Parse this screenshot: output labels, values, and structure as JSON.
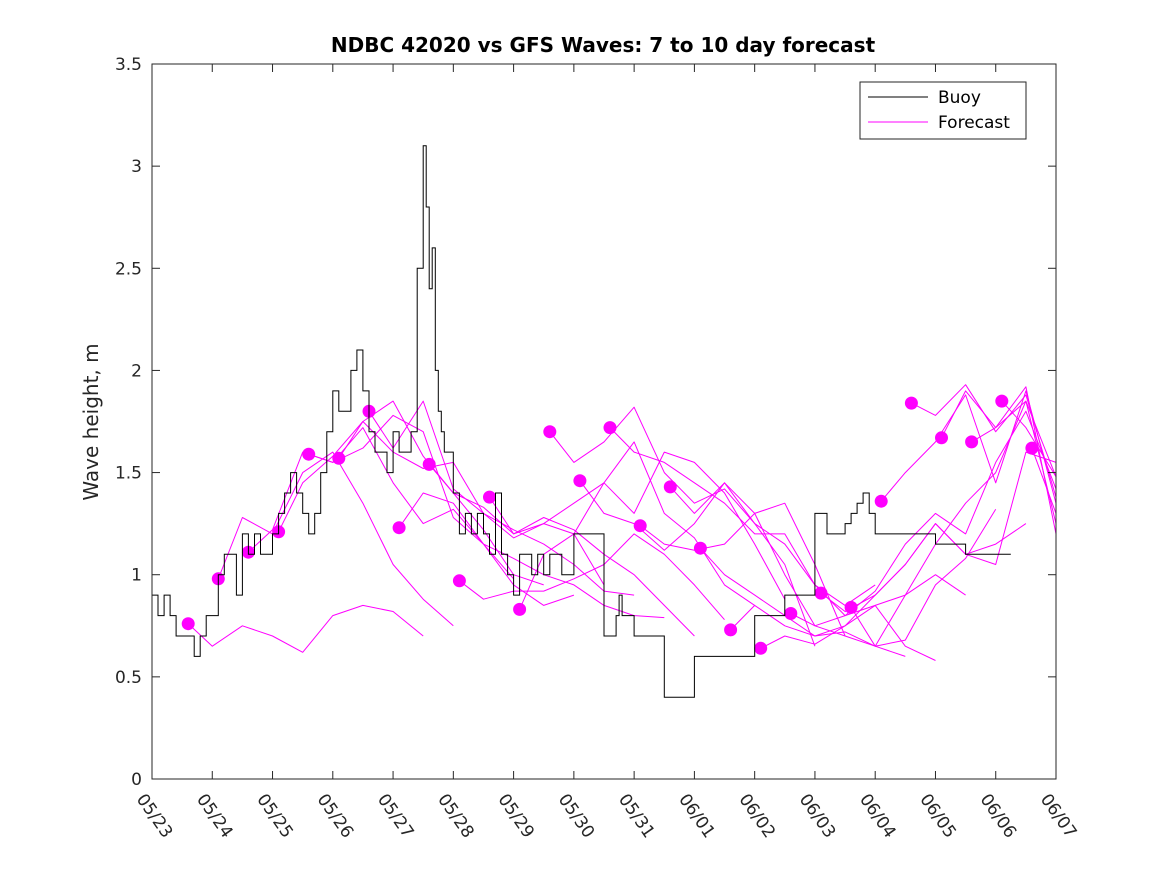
{
  "chart_data": {
    "type": "line",
    "title": "NDBC 42020 vs GFS Waves: 7 to 10 day forecast",
    "xlabel": "",
    "ylabel": "Wave height, m",
    "xlim": [
      "05/23",
      "06/07"
    ],
    "ylim": [
      0,
      3.5
    ],
    "x_ticks": [
      "05/23",
      "05/24",
      "05/25",
      "05/26",
      "05/27",
      "05/28",
      "05/29",
      "05/30",
      "05/31",
      "06/01",
      "06/02",
      "06/03",
      "06/04",
      "06/05",
      "06/06",
      "06/07"
    ],
    "y_ticks": [
      "0",
      "0.5",
      "1",
      "1.5",
      "2",
      "2.5",
      "3",
      "3.5"
    ],
    "grid": false,
    "legend_position": "top-right",
    "colors": {
      "buoy": "#000000",
      "forecast": "#ff00ff"
    },
    "legend": [
      {
        "label": "Buoy",
        "color": "#000000"
      },
      {
        "label": "Forecast",
        "color": "#ff00ff"
      }
    ],
    "series": [
      {
        "name": "Buoy",
        "color": "#000000",
        "x_days": [
          0,
          0.1,
          0.2,
          0.3,
          0.4,
          0.5,
          0.6,
          0.7,
          0.8,
          0.9,
          1.0,
          1.1,
          1.2,
          1.3,
          1.4,
          1.5,
          1.6,
          1.7,
          1.8,
          1.9,
          2.0,
          2.1,
          2.2,
          2.3,
          2.4,
          2.5,
          2.6,
          2.7,
          2.8,
          2.9,
          3.0,
          3.1,
          3.2,
          3.3,
          3.4,
          3.5,
          3.6,
          3.7,
          3.8,
          3.9,
          4.0,
          4.1,
          4.2,
          4.3,
          4.4,
          4.5,
          4.55,
          4.6,
          4.65,
          4.7,
          4.75,
          4.8,
          4.85,
          4.9,
          5.0,
          5.1,
          5.2,
          5.3,
          5.4,
          5.5,
          5.6,
          5.7,
          5.8,
          5.9,
          6.0,
          6.1,
          6.2,
          6.3,
          6.4,
          6.5,
          6.6,
          6.7,
          6.8,
          6.9,
          7.0,
          7.5,
          7.7,
          7.75,
          7.8,
          8.0,
          8.5,
          8.7,
          9.0,
          10.0,
          10.5,
          11.0,
          11.2,
          11.4,
          11.5,
          11.6,
          11.7,
          11.8,
          11.9,
          12.0,
          12.3,
          12.6,
          12.7,
          12.8,
          13.0,
          13.5,
          14.0,
          14.25
        ],
        "y": [
          0.9,
          0.8,
          0.9,
          0.8,
          0.7,
          0.7,
          0.7,
          0.6,
          0.7,
          0.8,
          0.8,
          1.0,
          1.1,
          1.1,
          0.9,
          1.2,
          1.1,
          1.2,
          1.1,
          1.1,
          1.2,
          1.3,
          1.4,
          1.5,
          1.4,
          1.3,
          1.2,
          1.3,
          1.5,
          1.7,
          1.9,
          1.8,
          1.8,
          2.0,
          2.1,
          1.9,
          1.7,
          1.6,
          1.6,
          1.5,
          1.7,
          1.6,
          1.6,
          1.7,
          2.5,
          3.1,
          2.8,
          2.4,
          2.6,
          2.0,
          1.8,
          1.7,
          1.6,
          1.6,
          1.4,
          1.2,
          1.3,
          1.2,
          1.3,
          1.2,
          1.1,
          1.4,
          1.1,
          1.0,
          0.9,
          1.1,
          1.1,
          1.0,
          1.1,
          1.0,
          1.1,
          1.1,
          1.0,
          1.0,
          1.2,
          0.7,
          0.8,
          0.9,
          0.8,
          0.7,
          0.4,
          0.4,
          0.6,
          0.8,
          0.9,
          1.3,
          1.2,
          1.2,
          1.25,
          1.3,
          1.35,
          1.4,
          1.3,
          1.2,
          1.2,
          1.2,
          1.2,
          1.2,
          1.15,
          1.1,
          1.1,
          1.1
        ]
      },
      {
        "name": "Forecast",
        "color": "#ff00ff",
        "runs": [
          {
            "x_days": [
              0.6,
              1.0,
              1.5,
              2.0,
              2.5,
              3.0,
              3.5,
              4.0,
              4.5
            ],
            "y": [
              0.76,
              0.65,
              0.75,
              0.7,
              0.62,
              0.8,
              0.85,
              0.82,
              0.7
            ]
          },
          {
            "x_days": [
              1.1,
              1.5,
              2.0,
              2.5,
              3.0,
              3.5,
              4.0,
              4.5,
              5.0
            ],
            "y": [
              0.98,
              1.28,
              1.2,
              1.5,
              1.6,
              1.35,
              1.05,
              0.88,
              0.75
            ]
          },
          {
            "x_days": [
              1.6,
              2.0,
              2.5,
              3.0,
              3.5,
              4.0,
              4.5,
              5.0,
              5.5,
              6.0
            ],
            "y": [
              1.11,
              1.22,
              1.6,
              1.55,
              1.72,
              1.45,
              1.25,
              1.32,
              1.15,
              0.98
            ]
          },
          {
            "x_days": [
              2.1,
              2.5,
              3.0,
              3.5,
              4.0,
              4.5,
              5.0,
              5.5,
              6.0,
              6.5
            ],
            "y": [
              1.21,
              1.45,
              1.58,
              1.75,
              1.85,
              1.58,
              1.4,
              1.22,
              1.0,
              0.95
            ]
          },
          {
            "x_days": [
              2.6,
              3.0,
              3.5,
              4.0,
              4.5,
              5.0,
              5.5,
              6.0,
              6.5,
              7.0
            ],
            "y": [
              1.59,
              1.55,
              1.62,
              1.78,
              1.7,
              1.28,
              1.15,
              0.95,
              0.85,
              0.9
            ]
          },
          {
            "x_days": [
              3.1,
              3.5,
              4.0,
              4.5,
              5.0,
              5.5,
              6.0,
              6.5,
              7.0,
              7.5
            ],
            "y": [
              1.57,
              1.75,
              1.6,
              1.52,
              1.55,
              1.3,
              1.18,
              1.25,
              1.2,
              0.95
            ]
          },
          {
            "x_days": [
              3.6,
              4.0,
              4.5,
              5.0,
              5.5,
              6.0,
              6.5,
              7.0,
              7.5,
              8.0
            ],
            "y": [
              1.8,
              1.62,
              1.85,
              1.42,
              1.3,
              1.22,
              1.15,
              1.05,
              0.92,
              0.9
            ]
          },
          {
            "x_days": [
              4.1,
              4.5,
              5.0,
              5.5,
              6.0,
              6.5,
              7.0,
              7.5,
              8.0,
              8.5
            ],
            "y": [
              1.23,
              1.4,
              1.35,
              1.15,
              1.08,
              1.0,
              0.95,
              0.85,
              0.8,
              0.79
            ]
          },
          {
            "x_days": [
              4.6,
              5.0,
              5.5,
              6.0,
              6.5,
              7.0,
              7.5,
              8.0,
              8.5,
              9.0
            ],
            "y": [
              1.54,
              1.4,
              1.33,
              1.2,
              1.28,
              1.22,
              1.1,
              1.0,
              0.85,
              0.7
            ]
          },
          {
            "x_days": [
              5.1,
              5.5,
              6.0,
              6.5,
              7.0,
              7.5,
              8.0,
              8.5,
              9.0,
              9.5
            ],
            "y": [
              0.97,
              0.88,
              0.92,
              0.92,
              0.98,
              1.05,
              1.2,
              1.1,
              0.95,
              0.78
            ]
          },
          {
            "x_days": [
              5.6,
              6.0,
              6.5,
              7.0,
              7.5,
              8.0,
              8.5,
              9.0,
              9.5,
              10.0
            ],
            "y": [
              1.38,
              1.2,
              1.25,
              1.35,
              1.45,
              1.65,
              1.3,
              1.18,
              0.95,
              0.85
            ]
          },
          {
            "x_days": [
              6.1,
              6.5,
              7.0,
              7.5,
              8.0,
              8.5,
              9.0,
              9.5,
              10.0,
              10.5
            ],
            "y": [
              0.83,
              1.1,
              1.2,
              1.45,
              1.3,
              1.6,
              1.55,
              1.4,
              1.15,
              0.88
            ]
          },
          {
            "x_days": [
              6.6,
              7.0,
              7.5,
              8.0,
              8.5,
              9.0,
              9.5,
              10.0,
              10.5,
              11.0
            ],
            "y": [
              1.7,
              1.55,
              1.65,
              1.82,
              1.5,
              1.35,
              1.42,
              1.25,
              1.05,
              0.65
            ]
          },
          {
            "x_days": [
              7.1,
              7.5,
              8.0,
              8.5,
              9.0,
              9.5,
              10.0,
              10.5,
              11.0,
              11.5
            ],
            "y": [
              1.46,
              1.3,
              1.25,
              1.12,
              1.25,
              1.45,
              1.3,
              1.35,
              1.05,
              0.7
            ]
          },
          {
            "x_days": [
              7.6,
              8.0,
              8.5,
              9.0,
              9.5,
              10.0,
              10.5,
              11.0,
              11.5,
              12.0
            ],
            "y": [
              1.72,
              1.6,
              1.55,
              1.45,
              1.35,
              1.2,
              1.2,
              0.95,
              0.85,
              0.95
            ]
          },
          {
            "x_days": [
              8.1,
              8.5,
              9.0,
              9.5,
              10.0,
              10.5,
              11.0,
              11.5,
              12.0,
              12.5
            ],
            "y": [
              1.24,
              1.15,
              1.12,
              1.15,
              1.3,
              1.0,
              0.75,
              0.7,
              0.65,
              0.6
            ]
          },
          {
            "x_days": [
              8.6,
              9.0,
              9.5,
              10.0,
              10.5,
              11.0,
              11.5,
              12.0,
              12.5,
              13.0
            ],
            "y": [
              1.43,
              1.3,
              1.45,
              1.25,
              1.15,
              0.95,
              0.8,
              0.85,
              0.65,
              0.58
            ]
          },
          {
            "x_days": [
              9.1,
              9.5,
              10.0,
              10.5,
              11.0,
              11.5,
              12.0,
              12.5,
              13.0,
              13.5
            ],
            "y": [
              1.13,
              1.0,
              0.9,
              0.8,
              0.7,
              0.75,
              0.85,
              0.9,
              1.0,
              0.9
            ]
          },
          {
            "x_days": [
              9.6,
              10.0,
              10.5,
              11.0,
              11.5,
              12.0,
              12.5,
              13.0,
              13.5,
              14.0
            ],
            "y": [
              0.73,
              0.85,
              0.75,
              0.7,
              0.72,
              0.65,
              0.68,
              0.95,
              1.08,
              1.32
            ]
          },
          {
            "x_days": [
              10.1,
              10.5,
              11.0,
              11.5,
              12.0,
              12.5,
              13.0,
              13.5,
              14.0,
              14.5
            ],
            "y": [
              0.64,
              0.7,
              0.66,
              0.75,
              0.9,
              1.05,
              1.25,
              1.1,
              1.15,
              1.25
            ]
          },
          {
            "x_days": [
              10.6,
              11.0,
              11.5,
              12.0,
              12.5,
              13.0,
              13.5,
              14.0,
              14.5,
              15.0
            ],
            "y": [
              0.81,
              0.75,
              0.8,
              0.92,
              1.15,
              1.3,
              1.2,
              1.55,
              1.8,
              1.42
            ]
          },
          {
            "x_days": [
              11.1,
              11.5,
              12.0,
              12.5,
              13.0,
              13.5,
              14.0,
              14.5,
              15.0
            ],
            "y": [
              0.91,
              0.82,
              0.9,
              1.05,
              1.25,
              1.1,
              1.05,
              1.6,
              1.55
            ]
          },
          {
            "x_days": [
              11.6,
              12.0,
              12.5,
              13.0,
              13.5,
              14.0,
              14.5,
              15.0
            ],
            "y": [
              0.84,
              0.65,
              0.9,
              1.15,
              1.35,
              1.5,
              1.85,
              1.48
            ]
          },
          {
            "x_days": [
              12.1,
              12.5,
              13.0,
              13.5,
              14.0,
              14.5,
              15.0
            ],
            "y": [
              1.36,
              1.5,
              1.65,
              1.88,
              1.45,
              1.9,
              1.35
            ]
          },
          {
            "x_days": [
              12.6,
              13.0,
              13.5,
              14.0,
              14.5,
              15.0
            ],
            "y": [
              1.84,
              1.78,
              1.93,
              1.7,
              1.88,
              1.38
            ]
          },
          {
            "x_days": [
              13.1,
              13.5,
              14.0,
              14.5,
              15.0
            ],
            "y": [
              1.67,
              1.9,
              1.72,
              1.92,
              1.2
            ]
          },
          {
            "x_days": [
              13.6,
              14.0,
              14.5,
              15.0
            ],
            "y": [
              1.65,
              1.72,
              1.85,
              1.25
            ]
          },
          {
            "x_days": [
              14.1,
              14.5,
              15.0
            ],
            "y": [
              1.85,
              1.72,
              1.48
            ]
          },
          {
            "x_days": [
              14.6,
              15.0
            ],
            "y": [
              1.62,
              1.3
            ]
          }
        ]
      }
    ]
  }
}
